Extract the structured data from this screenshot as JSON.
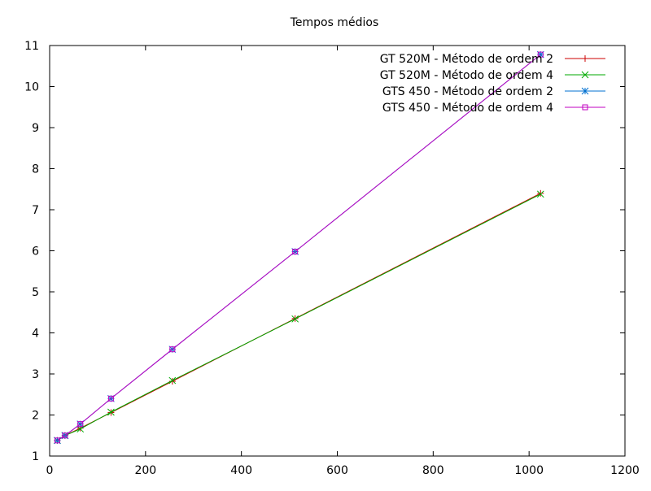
{
  "chart_data": {
    "type": "line",
    "title": "Tempos médios",
    "xlabel": "",
    "ylabel": "",
    "xlim": [
      0,
      1200
    ],
    "ylim": [
      1,
      11
    ],
    "x_ticks": [
      0,
      200,
      400,
      600,
      800,
      1000,
      1200
    ],
    "y_ticks": [
      1,
      2,
      3,
      4,
      5,
      6,
      7,
      8,
      9,
      10,
      11
    ],
    "x_tick_labels": [
      "0",
      "200",
      "400",
      "600",
      "800",
      "1000",
      "1200"
    ],
    "y_tick_labels": [
      "1",
      "2",
      "3",
      "4",
      "5",
      "6",
      "7",
      "8",
      "9",
      "10",
      "11"
    ],
    "grid": false,
    "legend_position": "top-right",
    "series": [
      {
        "name": "GT 520M - Método de ordem 2",
        "color": "#cc0000",
        "marker": "plus",
        "x": [
          16,
          32,
          64,
          128,
          256,
          512,
          1024
        ],
        "y": [
          1.38,
          1.5,
          1.68,
          2.06,
          2.82,
          4.35,
          7.4
        ]
      },
      {
        "name": "GT 520M - Método de ordem 4",
        "color": "#00aa00",
        "marker": "cross",
        "x": [
          16,
          32,
          64,
          128,
          256,
          512,
          1024
        ],
        "y": [
          1.38,
          1.5,
          1.66,
          2.07,
          2.84,
          4.34,
          7.38
        ]
      },
      {
        "name": "GTS 450 - Método de ordem 2",
        "color": "#0070d0",
        "marker": "star",
        "x": [
          16,
          32,
          64,
          128,
          256,
          512,
          1024
        ],
        "y": [
          1.38,
          1.5,
          1.78,
          2.4,
          3.6,
          5.98,
          10.78
        ]
      },
      {
        "name": "GTS 450 - Método de ordem 4",
        "color": "#c000c0",
        "marker": "square",
        "x": [
          16,
          32,
          64,
          128,
          256,
          512,
          1024
        ],
        "y": [
          1.38,
          1.5,
          1.78,
          2.4,
          3.6,
          5.98,
          10.78
        ]
      }
    ]
  }
}
